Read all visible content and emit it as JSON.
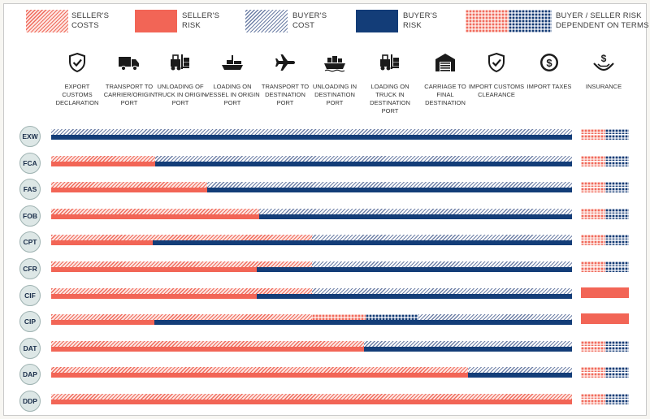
{
  "legend": {
    "items": [
      {
        "key": "seller-cost",
        "label": "SELLER'S\nCOSTS"
      },
      {
        "key": "seller-risk",
        "label": "SELLER'S\nRISK"
      },
      {
        "key": "buyer-cost",
        "label": "BUYER'S\nCOST"
      },
      {
        "key": "buyer-risk",
        "label": "BUYER'S\nRISK"
      },
      {
        "key": "dependent",
        "label": "BUYER / SELLER RISK\nDEPENDENT ON TERMS"
      }
    ]
  },
  "colors": {
    "seller": "#f26556",
    "buyer": "#133d78",
    "buyer_cost_stripe": "#6d7fa6",
    "badge_bg": "#dde7e6"
  },
  "steps": [
    {
      "icon": "shield-check-icon",
      "label": "EXPORT CUSTOMS DECLARATION"
    },
    {
      "icon": "truck-icon",
      "label": "TRANSPORT TO CARRIER/ORIGIN PORT"
    },
    {
      "icon": "forklift-icon",
      "label": "UNLOADING OF TRUCK IN ORIGIN PORT"
    },
    {
      "icon": "ship-icon",
      "label": "LOADING ON VESSEL IN ORIGIN PORT"
    },
    {
      "icon": "airplane-icon",
      "label": "TRANSPORT TO DESTINATION PORT"
    },
    {
      "icon": "cargo-ship-icon",
      "label": "UNLOADING IN DESTINATION PORT"
    },
    {
      "icon": "forklift-icon",
      "label": "LOADING ON TRUCK IN DESTINATION PORT"
    },
    {
      "icon": "warehouse-icon",
      "label": "CARRIAGE TO FINAL DESTINATION"
    },
    {
      "icon": "shield-check-icon",
      "label": "IMPORT CUSTOMS CLEARANCE"
    },
    {
      "icon": "dollar-coin-icon",
      "label": "IMPORT TAXES"
    },
    {
      "icon": "hand-dollar-icon",
      "label": "INSURANCE"
    }
  ],
  "terms": [
    {
      "code": "EXW",
      "cost_split": 0.0,
      "risk_split": 0.0,
      "dep_start": null,
      "dep_end": null,
      "insurance": "dependent"
    },
    {
      "code": "FCA",
      "cost_split": 0.2,
      "risk_split": 0.2,
      "dep_start": null,
      "dep_end": null,
      "insurance": "dependent"
    },
    {
      "code": "FAS",
      "cost_split": 0.3,
      "risk_split": 0.3,
      "dep_start": null,
      "dep_end": null,
      "insurance": "dependent"
    },
    {
      "code": "FOB",
      "cost_split": 0.4,
      "risk_split": 0.4,
      "dep_start": null,
      "dep_end": null,
      "insurance": "dependent"
    },
    {
      "code": "CPT",
      "cost_split": 0.5,
      "risk_split": 0.195,
      "dep_start": null,
      "dep_end": null,
      "insurance": "dependent"
    },
    {
      "code": "CFR",
      "cost_split": 0.5,
      "risk_split": 0.395,
      "dep_start": null,
      "dep_end": null,
      "insurance": "dependent"
    },
    {
      "code": "CIF",
      "cost_split": 0.5,
      "risk_split": 0.395,
      "dep_start": null,
      "dep_end": null,
      "insurance": "seller"
    },
    {
      "code": "CIP",
      "cost_split": 0.5,
      "risk_split": 0.198,
      "dep_start": 0.5,
      "dep_end": 0.705,
      "insurance": "seller"
    },
    {
      "code": "DAT",
      "cost_split": 0.6,
      "risk_split": 0.6,
      "dep_start": null,
      "dep_end": null,
      "insurance": "dependent"
    },
    {
      "code": "DAP",
      "cost_split": 0.8,
      "risk_split": 0.8,
      "dep_start": null,
      "dep_end": null,
      "insurance": "dependent"
    },
    {
      "code": "DDP",
      "cost_split": 1.0,
      "risk_split": 1.0,
      "dep_start": null,
      "dep_end": null,
      "insurance": "dependent"
    }
  ]
}
